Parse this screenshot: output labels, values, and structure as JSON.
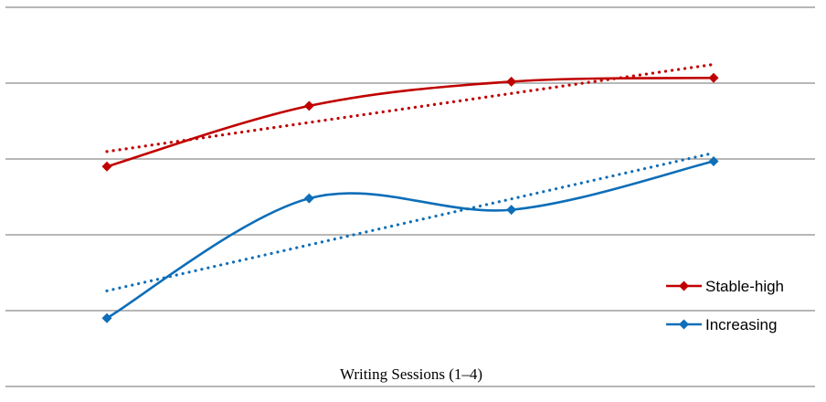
{
  "chart_data": {
    "type": "line",
    "title": "",
    "xlabel": "Writing Sessions (1–4)",
    "ylabel": "",
    "x": [
      1,
      2,
      3,
      4
    ],
    "ylim": [
      0,
      5
    ],
    "grid": true,
    "legend_position": "bottom-right",
    "series": [
      {
        "name": "Stable-high",
        "color": "#c00000",
        "values": [
          2.9,
          3.7,
          4.02,
          4.07
        ],
        "trendline": "linear",
        "marker": "diamond",
        "smooth": true
      },
      {
        "name": "Increasing",
        "color": "#0e6eb8",
        "values": [
          0.9,
          2.48,
          2.33,
          2.97
        ],
        "trendline": "linear",
        "marker": "diamond",
        "smooth": true
      }
    ]
  }
}
